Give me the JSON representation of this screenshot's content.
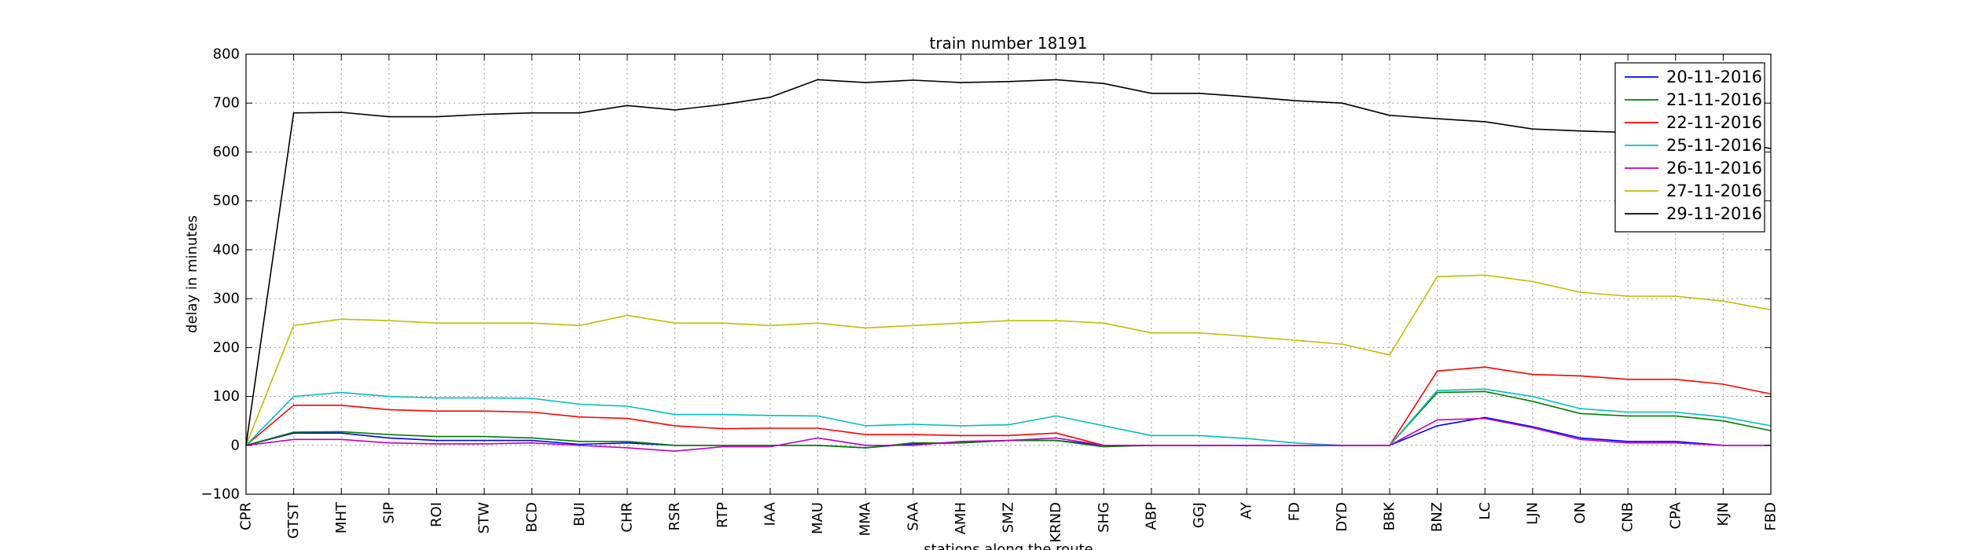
{
  "chart_data": {
    "type": "line",
    "title": "train number 18191",
    "xlabel": "stations along the route",
    "ylabel": "delay in minutes",
    "ylim": [
      -100,
      800
    ],
    "yticks": [
      -100,
      0,
      100,
      200,
      300,
      400,
      500,
      600,
      700,
      800
    ],
    "grid": true,
    "legend_position": "top-right",
    "categories": [
      "CPR",
      "GTST",
      "MHT",
      "SIP",
      "ROI",
      "STW",
      "BCD",
      "BUI",
      "CHR",
      "RSR",
      "RTP",
      "IAA",
      "MAU",
      "MMA",
      "SAA",
      "AMH",
      "SMZ",
      "KRND",
      "SHG",
      "ABP",
      "GGJ",
      "AY",
      "FD",
      "DYD",
      "BBK",
      "BNZ",
      "LC",
      "LJN",
      "ON",
      "CNB",
      "CPA",
      "KJN",
      "FBD"
    ],
    "series": [
      {
        "name": "20-11-2016",
        "color": "#0000ff",
        "values": [
          0,
          25,
          25,
          15,
          10,
          10,
          10,
          2,
          5,
          0,
          0,
          0,
          0,
          -5,
          3,
          5,
          10,
          10,
          0,
          0,
          0,
          0,
          0,
          0,
          0,
          40,
          57,
          38,
          15,
          8,
          8,
          0,
          0
        ]
      },
      {
        "name": "21-11-2016",
        "color": "#008000",
        "values": [
          0,
          27,
          28,
          22,
          18,
          18,
          15,
          8,
          8,
          0,
          0,
          0,
          0,
          -5,
          5,
          5,
          10,
          10,
          -3,
          0,
          0,
          0,
          0,
          0,
          0,
          108,
          110,
          90,
          65,
          60,
          60,
          50,
          30
        ]
      },
      {
        "name": "22-11-2016",
        "color": "#ff0000",
        "values": [
          0,
          82,
          82,
          73,
          70,
          70,
          68,
          58,
          55,
          40,
          34,
          35,
          35,
          22,
          22,
          20,
          20,
          25,
          0,
          0,
          0,
          0,
          0,
          0,
          0,
          152,
          160,
          145,
          142,
          135,
          135,
          125,
          105
        ]
      },
      {
        "name": "25-11-2016",
        "color": "#00bfbf",
        "values": [
          0,
          100,
          108,
          100,
          97,
          97,
          96,
          84,
          80,
          63,
          63,
          61,
          60,
          40,
          43,
          40,
          42,
          60,
          40,
          20,
          20,
          14,
          5,
          0,
          0,
          112,
          115,
          100,
          75,
          68,
          68,
          58,
          40
        ]
      },
      {
        "name": "26-11-2016",
        "color": "#bf00bf",
        "values": [
          0,
          12,
          12,
          5,
          3,
          3,
          5,
          0,
          -5,
          -12,
          -3,
          -3,
          15,
          0,
          0,
          8,
          10,
          15,
          0,
          0,
          0,
          0,
          0,
          0,
          0,
          52,
          55,
          36,
          12,
          5,
          5,
          0,
          0
        ]
      },
      {
        "name": "27-11-2016",
        "color": "#bfbf00",
        "values": [
          0,
          245,
          258,
          255,
          250,
          250,
          250,
          245,
          266,
          250,
          250,
          245,
          250,
          240,
          245,
          250,
          255,
          255,
          250,
          230,
          230,
          223,
          215,
          207,
          185,
          345,
          348,
          335,
          313,
          305,
          305,
          295,
          277
        ]
      },
      {
        "name": "29-11-2016",
        "color": "#000000",
        "values": [
          0,
          680,
          681,
          672,
          672,
          677,
          680,
          680,
          695,
          686,
          697,
          712,
          748,
          742,
          747,
          742,
          744,
          748,
          740,
          720,
          720,
          713,
          705,
          700,
          675,
          668,
          662,
          647,
          643,
          640,
          635,
          625,
          607
        ]
      }
    ]
  }
}
